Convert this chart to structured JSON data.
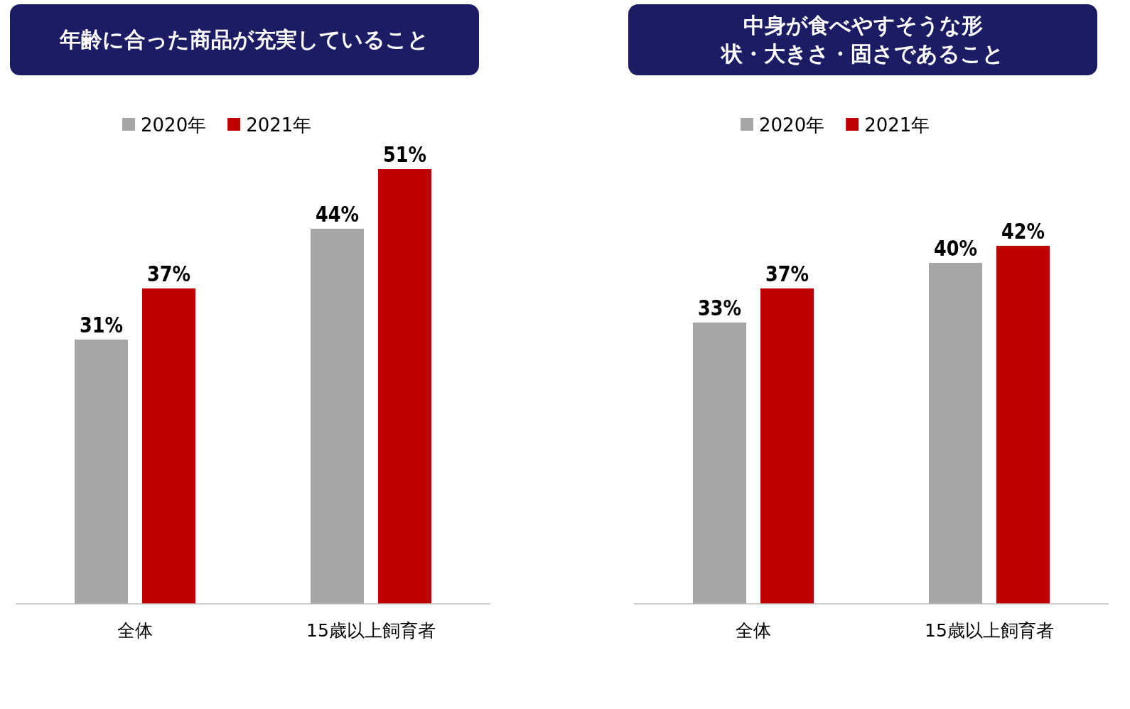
{
  "chart_data": [
    {
      "type": "bar",
      "title": "年齢に合った商品が充実していること",
      "categories": [
        "全体",
        "15歳以上飼育者"
      ],
      "legend": "top",
      "series": [
        {
          "name": "2020年",
          "color": "#a6a6a6",
          "values": [
            31,
            44
          ],
          "value_labels": [
            "31%",
            "44%"
          ]
        },
        {
          "name": "2021年",
          "color": "#c00000",
          "values": [
            37,
            51
          ],
          "value_labels": [
            "37%",
            "51%"
          ]
        }
      ]
    },
    {
      "type": "bar",
      "title": "中身が食べやすそうな形状・大きさ・固さであること",
      "categories": [
        "全体",
        "15歳以上飼育者"
      ],
      "legend": "top",
      "series": [
        {
          "name": "2020年",
          "color": "#a6a6a6",
          "values": [
            33,
            40
          ],
          "value_labels": [
            "33%",
            "40%"
          ]
        },
        {
          "name": "2021年",
          "color": "#c00000",
          "values": [
            37,
            42
          ],
          "value_labels": [
            "37%",
            "42%"
          ]
        }
      ]
    }
  ]
}
